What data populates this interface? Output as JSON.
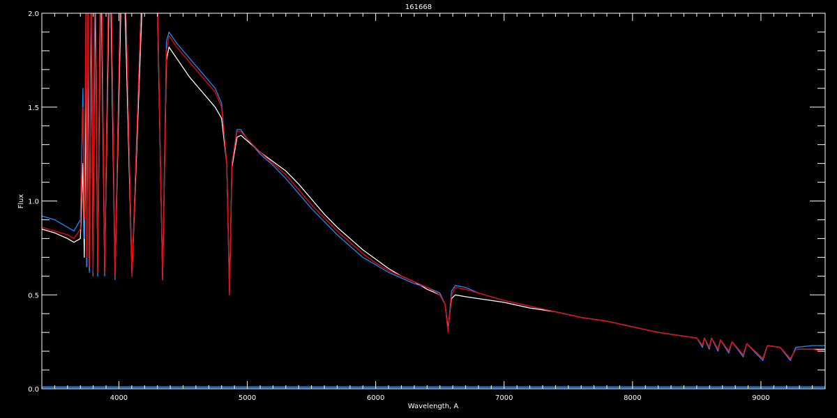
{
  "chart_data": {
    "type": "line",
    "title": "161668",
    "xlabel": "Wavelength, A",
    "ylabel": "Flux",
    "xlim": [
      3400,
      9500
    ],
    "ylim": [
      0.0,
      2.0
    ],
    "x_ticks": [
      4000,
      5000,
      6000,
      7000,
      8000,
      9000
    ],
    "x_minor_step": 100,
    "y_ticks": [
      "0.0",
      "0.5",
      "1.0",
      "1.5",
      "2.0"
    ],
    "y_minor_step": 0.1,
    "grid": false,
    "background": "#000000",
    "axis_color": "#ffffff",
    "x": [
      3400,
      3500,
      3600,
      3650,
      3700,
      3720,
      3730,
      3745,
      3750,
      3760,
      3770,
      3785,
      3798,
      3815,
      3835,
      3860,
      3889,
      3930,
      3970,
      4030,
      4102,
      4200,
      4300,
      4340,
      4370,
      4390,
      4450,
      4550,
      4650,
      4750,
      4800,
      4840,
      4861,
      4880,
      4920,
      4950,
      5000,
      5100,
      5200,
      5300,
      5400,
      5500,
      5600,
      5700,
      5800,
      5900,
      6000,
      6100,
      6200,
      6300,
      6400,
      6500,
      6540,
      6563,
      6590,
      6620,
      6700,
      6800,
      7000,
      7200,
      7400,
      7600,
      7800,
      8000,
      8200,
      8400,
      8500,
      8545,
      8560,
      8598,
      8615,
      8665,
      8685,
      8750,
      8775,
      8862,
      8890,
      9015,
      9050,
      9150,
      9229,
      9270,
      9400,
      9500
    ],
    "series": [
      {
        "color": "#ffffff",
        "values": [
          0.85,
          0.83,
          0.8,
          0.78,
          0.8,
          1.2,
          0.7,
          1.6,
          0.65,
          1.9,
          0.63,
          2.1,
          0.62,
          2.2,
          0.62,
          2.3,
          0.62,
          2.4,
          0.6,
          2.5,
          0.6,
          2.4,
          2.05,
          0.58,
          1.75,
          1.82,
          1.76,
          1.66,
          1.58,
          1.5,
          1.44,
          1.2,
          0.52,
          1.18,
          1.34,
          1.35,
          1.32,
          1.26,
          1.21,
          1.16,
          1.09,
          1.01,
          0.93,
          0.86,
          0.8,
          0.74,
          0.69,
          0.64,
          0.6,
          0.57,
          0.53,
          0.5,
          0.45,
          0.32,
          0.48,
          0.5,
          0.49,
          0.48,
          0.46,
          0.43,
          0.41,
          0.38,
          0.36,
          0.33,
          0.3,
          0.28,
          0.27,
          0.23,
          0.27,
          0.22,
          0.27,
          0.21,
          0.26,
          0.2,
          0.25,
          0.18,
          0.24,
          0.16,
          0.23,
          0.22,
          0.16,
          0.21,
          0.21,
          0.21
        ]
      },
      {
        "color": "#1a8cff",
        "values": [
          0.92,
          0.9,
          0.86,
          0.84,
          0.9,
          1.6,
          0.8,
          2.2,
          0.65,
          2.3,
          0.62,
          2.4,
          0.6,
          2.5,
          0.6,
          2.6,
          0.6,
          2.7,
          0.58,
          2.8,
          0.6,
          2.6,
          2.1,
          0.58,
          1.85,
          1.9,
          1.84,
          1.76,
          1.68,
          1.6,
          1.52,
          1.2,
          0.5,
          1.2,
          1.38,
          1.38,
          1.33,
          1.25,
          1.19,
          1.12,
          1.04,
          0.96,
          0.89,
          0.82,
          0.76,
          0.7,
          0.66,
          0.62,
          0.59,
          0.56,
          0.54,
          0.51,
          0.45,
          0.31,
          0.52,
          0.55,
          0.54,
          0.51,
          0.47,
          0.44,
          0.41,
          0.38,
          0.36,
          0.33,
          0.3,
          0.28,
          0.27,
          0.22,
          0.27,
          0.21,
          0.27,
          0.2,
          0.26,
          0.19,
          0.25,
          0.17,
          0.24,
          0.15,
          0.23,
          0.22,
          0.15,
          0.22,
          0.23,
          0.23
        ]
      },
      {
        "color": "#ff0000",
        "values": [
          0.86,
          0.84,
          0.82,
          0.8,
          0.85,
          1.5,
          0.9,
          2.2,
          0.7,
          2.3,
          0.65,
          2.4,
          0.62,
          2.5,
          0.62,
          2.6,
          0.62,
          2.7,
          0.6,
          2.8,
          0.6,
          2.6,
          2.1,
          0.58,
          1.8,
          1.88,
          1.82,
          1.74,
          1.66,
          1.58,
          1.5,
          1.2,
          0.5,
          1.2,
          1.37,
          1.37,
          1.33,
          1.26,
          1.2,
          1.14,
          1.06,
          0.98,
          0.91,
          0.84,
          0.78,
          0.72,
          0.67,
          0.63,
          0.6,
          0.57,
          0.54,
          0.5,
          0.45,
          0.3,
          0.5,
          0.54,
          0.53,
          0.51,
          0.47,
          0.44,
          0.41,
          0.38,
          0.36,
          0.33,
          0.3,
          0.28,
          0.27,
          0.23,
          0.27,
          0.22,
          0.27,
          0.21,
          0.26,
          0.2,
          0.25,
          0.18,
          0.24,
          0.16,
          0.23,
          0.22,
          0.16,
          0.21,
          0.21,
          0.2
        ]
      }
    ],
    "error_series": {
      "color": "#1a8cff",
      "x": [
        3400,
        9500
      ],
      "values": [
        0.005,
        0.005
      ]
    }
  }
}
